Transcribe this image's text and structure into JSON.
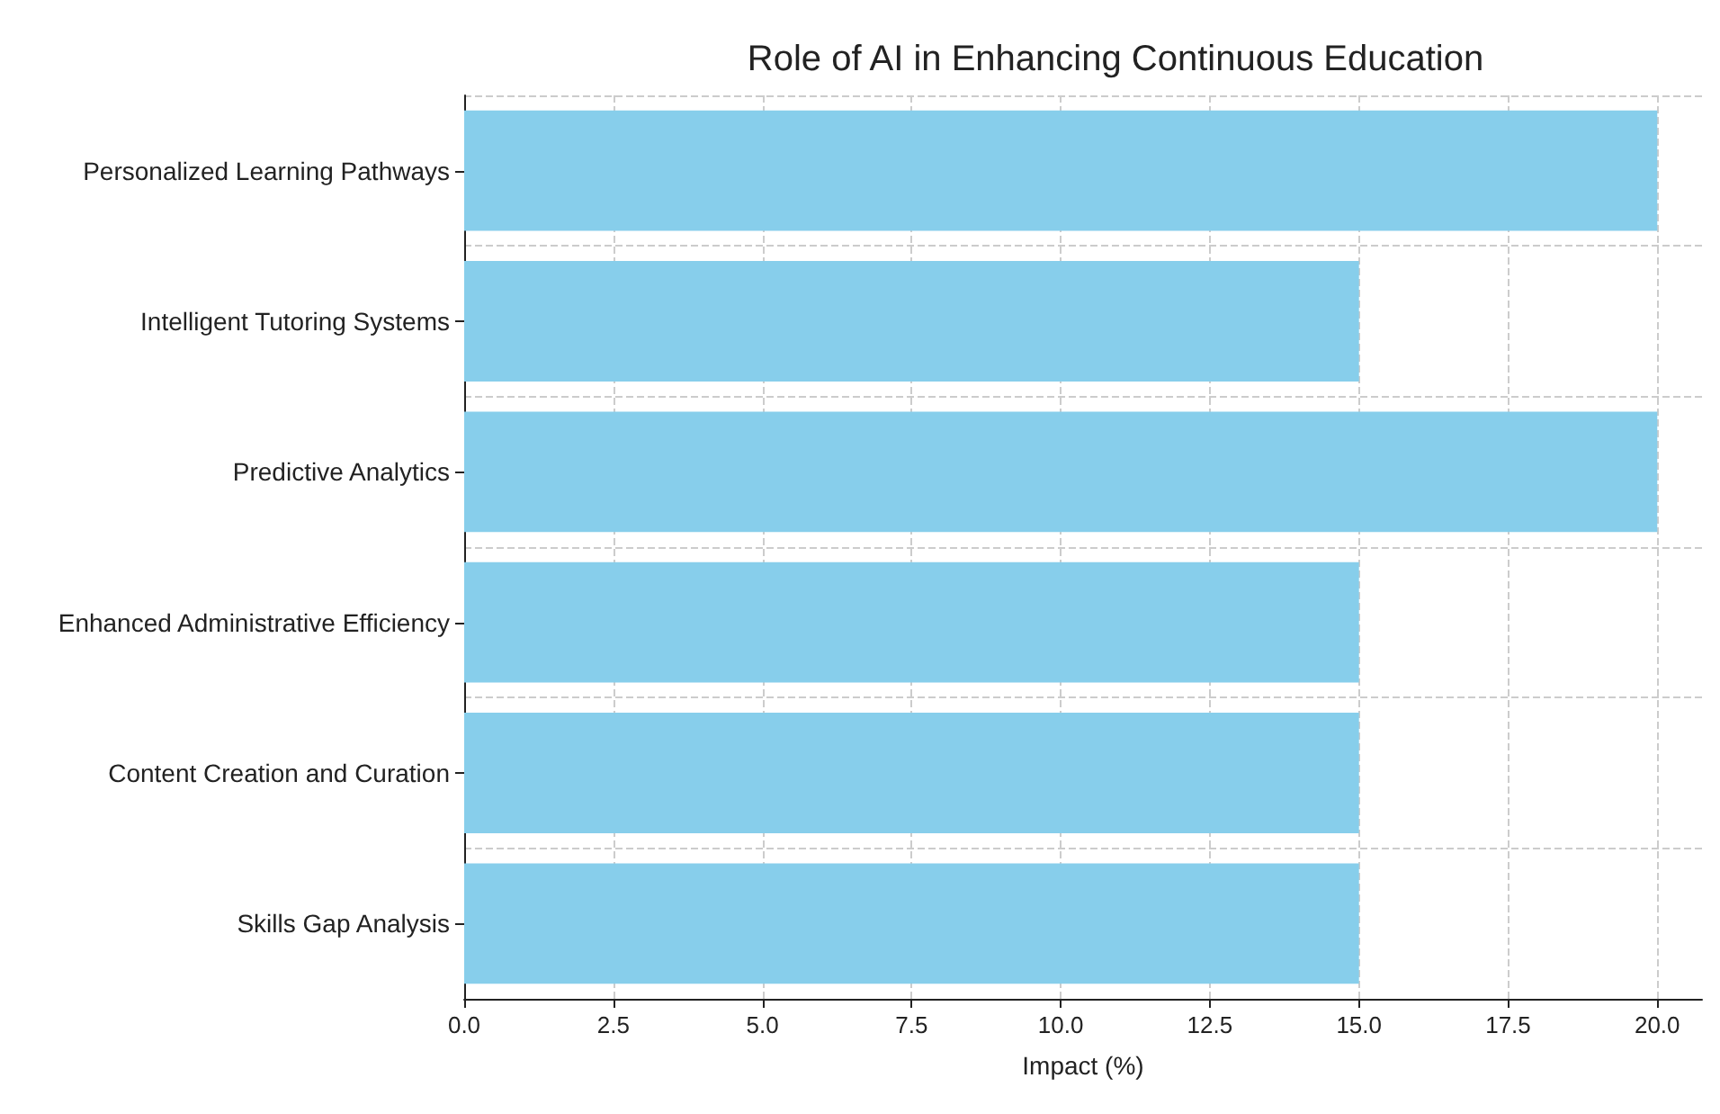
{
  "chart_data": {
    "type": "bar",
    "orientation": "horizontal",
    "title": "Role of AI in Enhancing Continuous Education",
    "xlabel": "Impact (%)",
    "categories": [
      "Personalized Learning Pathways",
      "Intelligent Tutoring Systems",
      "Predictive Analytics",
      "Enhanced Administrative Efficiency",
      "Content Creation and Curation",
      "Skills Gap Analysis"
    ],
    "values": [
      20,
      15,
      20,
      15,
      15,
      15
    ],
    "color": "#87ceeb",
    "xlim": [
      0,
      20.75
    ],
    "xticks": [
      {
        "value": 0,
        "label": "0.0"
      },
      {
        "value": 2.5,
        "label": "2.5"
      },
      {
        "value": 5,
        "label": "5.0"
      },
      {
        "value": 7.5,
        "label": "7.5"
      },
      {
        "value": 10,
        "label": "10.0"
      },
      {
        "value": 12.5,
        "label": "12.5"
      },
      {
        "value": 15,
        "label": "15.0"
      },
      {
        "value": 17.5,
        "label": "17.5"
      },
      {
        "value": 20,
        "label": "20.0"
      }
    ],
    "grid": true,
    "line_style": "dashed"
  }
}
